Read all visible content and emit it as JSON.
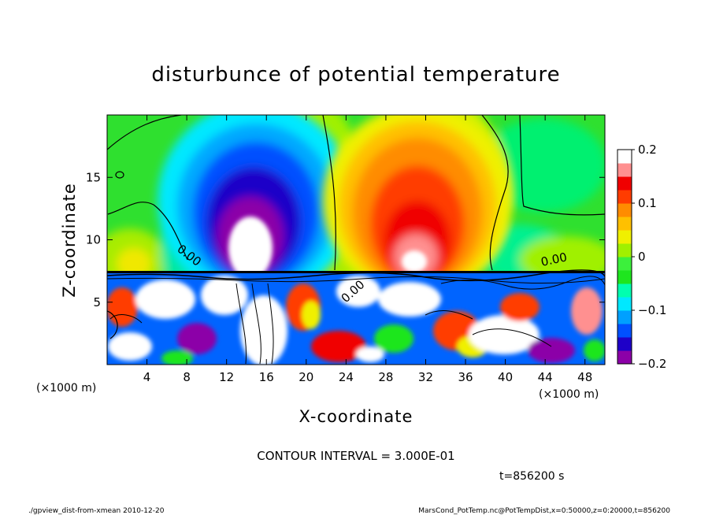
{
  "chart_data": {
    "type": "heatmap",
    "title": "disturbunce of potential temperature",
    "xlabel": "X-coordinate",
    "ylabel": "Z-coordinate",
    "x_unit": "(×1000 m)",
    "y_unit": "(×1000 m)",
    "xlim": [
      0,
      50
    ],
    "ylim": [
      0,
      20
    ],
    "x_ticks": [
      4,
      8,
      12,
      16,
      20,
      24,
      28,
      32,
      36,
      40,
      44,
      48
    ],
    "y_ticks": [
      5,
      10,
      15
    ],
    "colorbar": {
      "range": [
        -0.2,
        0.2
      ],
      "tick_values": [
        0.2,
        0.1,
        0,
        -0.1,
        -0.2
      ],
      "tick_labels": [
        "0.2",
        "0.1",
        "0",
        "−0.1",
        "−0.2"
      ],
      "colors": [
        "#8c00a8",
        "#1e00c8",
        "#0050ff",
        "#00a0ff",
        "#00e8ff",
        "#00ffb0",
        "#1ee61e",
        "#3cf03c",
        "#a0f000",
        "#f0f000",
        "#ffc000",
        "#ff8c00",
        "#ff3c00",
        "#f00000",
        "#ff9090",
        "#ffffff"
      ]
    },
    "contour_interval_text": "CONTOUR INTERVAL = 3.000E-01",
    "contour_label": "0.00",
    "features": [
      {
        "kind": "cold plume",
        "x_center": 16,
        "z_peak": 18,
        "min_value": -0.2
      },
      {
        "kind": "warm plume",
        "x_center": 31,
        "z_peak": 18,
        "max_value": 0.2
      },
      {
        "kind": "mixed turbulent layer",
        "z_top": 7.5
      }
    ]
  },
  "time_label": "t=856200 s",
  "footer_left": "./gpview_dist-from-xmean  2010-12-20",
  "footer_right": "MarsCond_PotTemp.nc@PotTempDist,x=0:50000,z=0:20000,t=856200"
}
